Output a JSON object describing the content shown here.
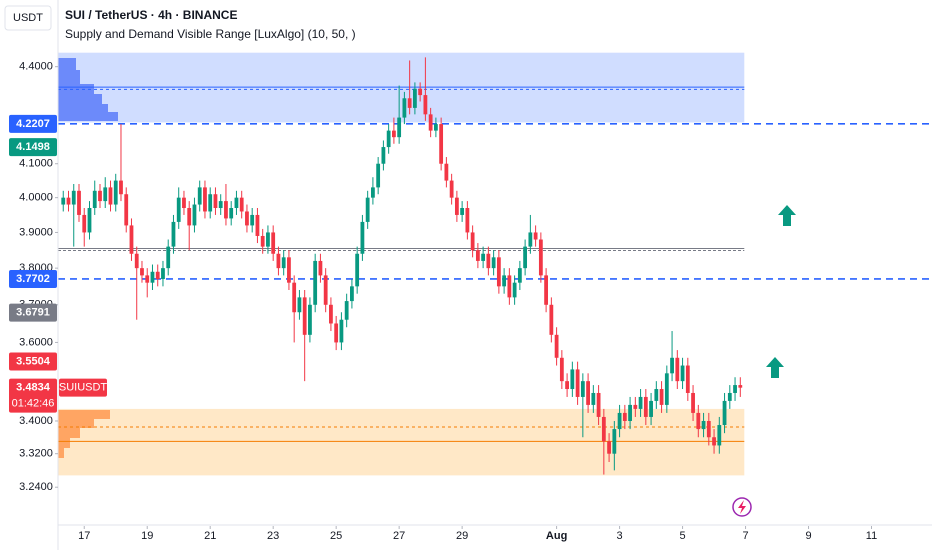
{
  "chart_data": {
    "type": "candlestick",
    "currency": "USDT",
    "title": "SUI / TetherUS · 4h · BINANCE",
    "subtitle": "Supply and Demand Visible Range [LuxAlgo] (10, 50, )",
    "log_scale": true,
    "grid": false,
    "up_color": "#089981",
    "down_color": "#f23645",
    "ylim": [
      3.21,
      4.47
    ],
    "yticks": [
      {
        "value": 4.4,
        "label": "4.4000"
      },
      {
        "value": 4.1,
        "label": "4.1000"
      },
      {
        "value": 4.0,
        "label": "4.0000"
      },
      {
        "value": 3.9,
        "label": "3.9000"
      },
      {
        "value": 3.8,
        "label": "3.8000"
      },
      {
        "value": 3.7,
        "label": "3.7000"
      },
      {
        "value": 3.6,
        "label": "3.6000"
      },
      {
        "value": 3.4,
        "label": "3.4000"
      },
      {
        "value": 3.32,
        "label": "3.3200"
      },
      {
        "value": 3.24,
        "label": "3.2400"
      }
    ],
    "xlim": [
      -1,
      160
    ],
    "xticks": [
      {
        "value": 4,
        "label": "17"
      },
      {
        "value": 16,
        "label": "19"
      },
      {
        "value": 28,
        "label": "21"
      },
      {
        "value": 40,
        "label": "23"
      },
      {
        "value": 52,
        "label": "25"
      },
      {
        "value": 64,
        "label": "27"
      },
      {
        "value": 76,
        "label": "29"
      },
      {
        "value": 94,
        "label": "Aug"
      },
      {
        "value": 106,
        "label": "3"
      },
      {
        "value": 118,
        "label": "5"
      },
      {
        "value": 130,
        "label": "7"
      },
      {
        "value": 142,
        "label": "9"
      },
      {
        "value": 154,
        "label": "11"
      }
    ],
    "open": [
      3.98,
      4.0,
      3.98,
      4.02,
      3.95,
      3.9,
      3.97,
      4.02,
      3.99,
      4.03,
      3.98,
      4.05,
      4.01,
      3.92,
      3.84,
      3.8,
      3.78,
      3.76,
      3.79,
      3.77,
      3.8,
      3.86,
      3.93,
      4.0,
      3.97,
      3.92,
      3.98,
      4.03,
      3.96,
      4.01,
      3.97,
      3.99,
      3.94,
      3.97,
      4.0,
      3.96,
      3.92,
      3.95,
      3.89,
      3.86,
      3.9,
      3.84,
      3.8,
      3.83,
      3.76,
      3.68,
      3.72,
      3.62,
      3.7,
      3.82,
      3.78,
      3.7,
      3.65,
      3.6,
      3.66,
      3.71,
      3.75,
      3.84,
      3.93,
      4.0,
      4.03,
      4.1,
      4.15,
      4.2,
      4.18,
      4.24,
      4.3,
      4.27,
      4.33,
      4.31,
      4.25,
      4.2,
      4.22,
      4.1,
      4.05,
      4.0,
      3.95,
      3.97,
      3.9,
      3.85,
      3.82,
      3.84,
      3.8,
      3.83,
      3.75,
      3.78,
      3.72,
      3.76,
      3.8,
      3.86,
      3.9,
      3.88,
      3.78,
      3.7,
      3.62,
      3.56,
      3.5,
      3.48,
      3.53,
      3.46,
      3.5,
      3.44,
      3.47,
      3.41,
      3.35,
      3.32,
      3.38,
      3.42,
      3.4,
      3.44,
      3.43,
      3.46,
      3.41,
      3.45,
      3.48,
      3.44,
      3.52,
      3.56,
      3.5,
      3.54,
      3.47,
      3.42,
      3.38,
      3.4,
      3.36,
      3.34,
      3.39,
      3.45,
      3.47,
      3.49
    ],
    "high": [
      4.02,
      4.02,
      4.04,
      4.04,
      3.97,
      3.99,
      4.05,
      4.04,
      4.06,
      4.05,
      4.07,
      4.22,
      4.03,
      3.94,
      3.86,
      3.82,
      3.8,
      3.81,
      3.81,
      3.82,
      3.88,
      3.95,
      4.03,
      4.02,
      3.99,
      4.0,
      4.05,
      4.05,
      4.03,
      4.03,
      4.01,
      4.04,
      3.99,
      4.02,
      4.02,
      3.98,
      3.97,
      3.97,
      3.91,
      3.92,
      3.92,
      3.86,
      3.85,
      3.85,
      3.78,
      3.74,
      3.74,
      3.72,
      3.84,
      3.84,
      3.8,
      3.72,
      3.67,
      3.68,
      3.73,
      3.77,
      3.86,
      3.95,
      4.02,
      4.06,
      4.12,
      4.17,
      4.22,
      4.24,
      4.34,
      4.32,
      4.42,
      4.35,
      4.35,
      4.43,
      4.27,
      4.24,
      4.24,
      4.12,
      4.07,
      4.02,
      3.99,
      3.99,
      3.92,
      3.87,
      3.86,
      3.86,
      3.85,
      3.85,
      3.8,
      3.8,
      3.78,
      3.82,
      3.88,
      3.95,
      3.92,
      3.9,
      3.8,
      3.72,
      3.64,
      3.58,
      3.52,
      3.55,
      3.55,
      3.52,
      3.52,
      3.49,
      3.49,
      3.43,
      3.37,
      3.4,
      3.44,
      3.44,
      3.46,
      3.46,
      3.48,
      3.48,
      3.47,
      3.5,
      3.5,
      3.54,
      3.63,
      3.58,
      3.56,
      3.56,
      3.49,
      3.44,
      3.42,
      3.42,
      3.38,
      3.41,
      3.47,
      3.49,
      3.51,
      3.51
    ],
    "low": [
      3.96,
      3.96,
      3.86,
      3.93,
      3.86,
      3.88,
      3.95,
      3.97,
      3.97,
      3.96,
      3.96,
      3.99,
      3.9,
      3.82,
      3.66,
      3.76,
      3.72,
      3.74,
      3.75,
      3.75,
      3.78,
      3.84,
      3.91,
      3.95,
      3.85,
      3.9,
      3.96,
      3.94,
      3.94,
      3.95,
      3.95,
      3.92,
      3.92,
      3.95,
      3.94,
      3.9,
      3.9,
      3.87,
      3.84,
      3.84,
      3.82,
      3.78,
      3.78,
      3.74,
      3.6,
      3.66,
      3.5,
      3.6,
      3.68,
      3.76,
      3.68,
      3.63,
      3.58,
      3.58,
      3.64,
      3.69,
      3.73,
      3.82,
      3.91,
      3.98,
      4.01,
      4.08,
      4.13,
      4.16,
      4.16,
      4.22,
      4.25,
      4.25,
      4.29,
      4.23,
      4.18,
      4.18,
      4.08,
      4.03,
      3.98,
      3.93,
      3.93,
      3.88,
      3.83,
      3.8,
      3.8,
      3.78,
      3.78,
      3.73,
      3.73,
      3.7,
      3.7,
      3.74,
      3.78,
      3.84,
      3.86,
      3.76,
      3.68,
      3.6,
      3.54,
      3.48,
      3.46,
      3.46,
      3.44,
      3.36,
      3.42,
      3.42,
      3.39,
      3.27,
      3.3,
      3.28,
      3.36,
      3.38,
      3.38,
      3.41,
      3.41,
      3.39,
      3.39,
      3.43,
      3.42,
      3.42,
      3.5,
      3.48,
      3.48,
      3.45,
      3.4,
      3.36,
      3.36,
      3.34,
      3.32,
      3.32,
      3.37,
      3.43,
      3.45,
      3.46
    ],
    "close": [
      4.0,
      3.98,
      4.02,
      3.95,
      3.9,
      3.97,
      4.02,
      3.99,
      4.03,
      3.98,
      4.05,
      4.01,
      3.92,
      3.84,
      3.8,
      3.78,
      3.76,
      3.79,
      3.77,
      3.8,
      3.86,
      3.93,
      4.0,
      3.97,
      3.92,
      3.98,
      4.03,
      3.96,
      4.01,
      3.97,
      3.99,
      3.94,
      3.97,
      4.0,
      3.96,
      3.92,
      3.95,
      3.89,
      3.86,
      3.9,
      3.84,
      3.8,
      3.83,
      3.76,
      3.68,
      3.72,
      3.62,
      3.7,
      3.82,
      3.78,
      3.7,
      3.65,
      3.6,
      3.66,
      3.71,
      3.75,
      3.84,
      3.93,
      4.0,
      4.03,
      4.1,
      4.15,
      4.2,
      4.18,
      4.24,
      4.3,
      4.27,
      4.33,
      4.31,
      4.25,
      4.2,
      4.22,
      4.1,
      4.05,
      4.0,
      3.95,
      3.97,
      3.9,
      3.85,
      3.82,
      3.84,
      3.8,
      3.83,
      3.75,
      3.78,
      3.72,
      3.76,
      3.8,
      3.86,
      3.9,
      3.88,
      3.78,
      3.7,
      3.62,
      3.56,
      3.5,
      3.48,
      3.53,
      3.46,
      3.5,
      3.44,
      3.47,
      3.41,
      3.35,
      3.32,
      3.38,
      3.42,
      3.4,
      3.44,
      3.43,
      3.46,
      3.41,
      3.45,
      3.48,
      3.44,
      3.52,
      3.56,
      3.5,
      3.54,
      3.47,
      3.42,
      3.38,
      3.4,
      3.36,
      3.34,
      3.39,
      3.45,
      3.47,
      3.49,
      3.4834
    ],
    "zones": [
      {
        "top": 4.445,
        "bottom": 4.225,
        "average": 4.335,
        "weighted_average": 4.328,
        "fill": "rgba(41,98,255,0.22)",
        "line_color": "#2962ff"
      },
      {
        "top": 3.43,
        "bottom": 3.268,
        "average": 3.35,
        "weighted_average": 3.385,
        "fill": "rgba(255,152,0,0.22)",
        "line_color": "#f57c00"
      }
    ],
    "equilibrium": 3.852,
    "levels": [
      {
        "value": 4.2207,
        "label": "4.2207",
        "color": "#2962ff",
        "dashed": true
      },
      {
        "value": 4.1498,
        "label": "4.1498",
        "color": "#089981",
        "dashed": false
      },
      {
        "value": 3.7702,
        "label": "3.7702",
        "color": "#2962ff",
        "dashed": true
      },
      {
        "value": 3.6791,
        "label": "3.6791",
        "color": "#787b86",
        "dashed": false
      },
      {
        "value": 3.5504,
        "label": "3.5504",
        "color": "#f23645",
        "dashed": false
      }
    ],
    "last_price": {
      "value": 3.4834,
      "label": "3.4834",
      "symbol": "SUIUSDT",
      "countdown": "01:42:46",
      "color": "#f23645"
    }
  }
}
